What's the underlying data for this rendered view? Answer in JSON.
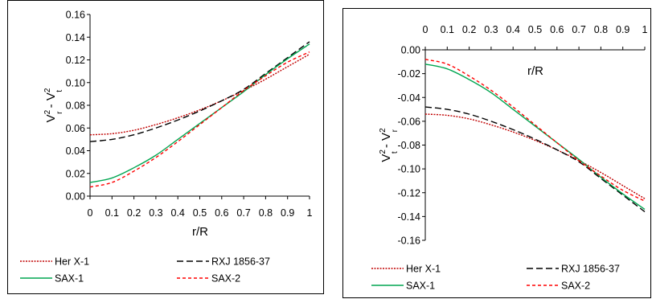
{
  "colors": {
    "her_x1": "#c00000",
    "rxj": "#000000",
    "sax1": "#00a650",
    "sax2": "#ff0000"
  },
  "chart_data": [
    {
      "type": "line",
      "xlabel": "r/R",
      "ylabel": {
        "a": "V",
        "a_sup": "2",
        "a_sub": "r",
        "sep": " - ",
        "b": "V",
        "b_sup": "2",
        "b_sub": "t"
      },
      "xlim": [
        0,
        1
      ],
      "ylim": [
        0,
        0.16
      ],
      "x_ticks": [
        "0",
        "0.1",
        "0.2",
        "0.3",
        "0.4",
        "0.5",
        "0.6",
        "0.7",
        "0.8",
        "0.9",
        "1"
      ],
      "y_ticks": [
        "0.00",
        "0.02",
        "0.04",
        "0.06",
        "0.08",
        "0.10",
        "0.12",
        "0.14",
        "0.16"
      ],
      "grid": false,
      "legend_position": "bottom",
      "x": [
        0,
        0.1,
        0.2,
        0.3,
        0.4,
        0.5,
        0.6,
        0.7,
        0.8,
        0.9,
        1
      ],
      "series": [
        {
          "name": "Her X-1",
          "key": "her_x1",
          "style": "dotted",
          "values": [
            0.054,
            0.055,
            0.058,
            0.063,
            0.069,
            0.076,
            0.084,
            0.093,
            0.103,
            0.114,
            0.125
          ]
        },
        {
          "name": "RXJ 1856-37",
          "key": "rxj",
          "style": "longdash",
          "values": [
            0.048,
            0.05,
            0.054,
            0.06,
            0.067,
            0.075,
            0.084,
            0.094,
            0.108,
            0.122,
            0.136
          ]
        },
        {
          "name": "SAX-1",
          "key": "sax1",
          "style": "solid",
          "values": [
            0.012,
            0.016,
            0.025,
            0.036,
            0.05,
            0.064,
            0.078,
            0.092,
            0.107,
            0.121,
            0.134
          ]
        },
        {
          "name": "SAX-2",
          "key": "sax2",
          "style": "dashed",
          "values": [
            0.008,
            0.012,
            0.022,
            0.034,
            0.048,
            0.063,
            0.078,
            0.093,
            0.106,
            0.118,
            0.127
          ]
        }
      ]
    },
    {
      "type": "line",
      "xlabel": "r/R",
      "ylabel": {
        "a": "V",
        "a_sup": "2",
        "a_sub": "t",
        "sep": " - ",
        "b": "V",
        "b_sup": "2",
        "b_sub": "r"
      },
      "xlim": [
        0,
        1
      ],
      "ylim": [
        -0.16,
        0
      ],
      "x_ticks": [
        "0",
        "0.1",
        "0.2",
        "0.3",
        "0.4",
        "0.5",
        "0.6",
        "0.7",
        "0.8",
        "0.9",
        "1"
      ],
      "y_ticks": [
        "-0.16",
        "-0.14",
        "-0.12",
        "-0.10",
        "-0.08",
        "-0.06",
        "-0.04",
        "-0.02",
        "0.00"
      ],
      "grid": false,
      "legend_position": "bottom",
      "x": [
        0,
        0.1,
        0.2,
        0.3,
        0.4,
        0.5,
        0.6,
        0.7,
        0.8,
        0.9,
        1
      ],
      "series": [
        {
          "name": "Her X-1",
          "key": "her_x1",
          "style": "dotted",
          "values": [
            -0.054,
            -0.055,
            -0.058,
            -0.063,
            -0.069,
            -0.076,
            -0.084,
            -0.093,
            -0.103,
            -0.114,
            -0.125
          ]
        },
        {
          "name": "RXJ 1856-37",
          "key": "rxj",
          "style": "longdash",
          "values": [
            -0.048,
            -0.05,
            -0.054,
            -0.06,
            -0.067,
            -0.075,
            -0.084,
            -0.094,
            -0.108,
            -0.122,
            -0.136
          ]
        },
        {
          "name": "SAX-1",
          "key": "sax1",
          "style": "solid",
          "values": [
            -0.012,
            -0.016,
            -0.025,
            -0.036,
            -0.05,
            -0.064,
            -0.078,
            -0.092,
            -0.107,
            -0.121,
            -0.134
          ]
        },
        {
          "name": "SAX-2",
          "key": "sax2",
          "style": "dashed",
          "values": [
            -0.008,
            -0.012,
            -0.022,
            -0.034,
            -0.048,
            -0.063,
            -0.078,
            -0.093,
            -0.106,
            -0.118,
            -0.127
          ]
        }
      ]
    }
  ]
}
